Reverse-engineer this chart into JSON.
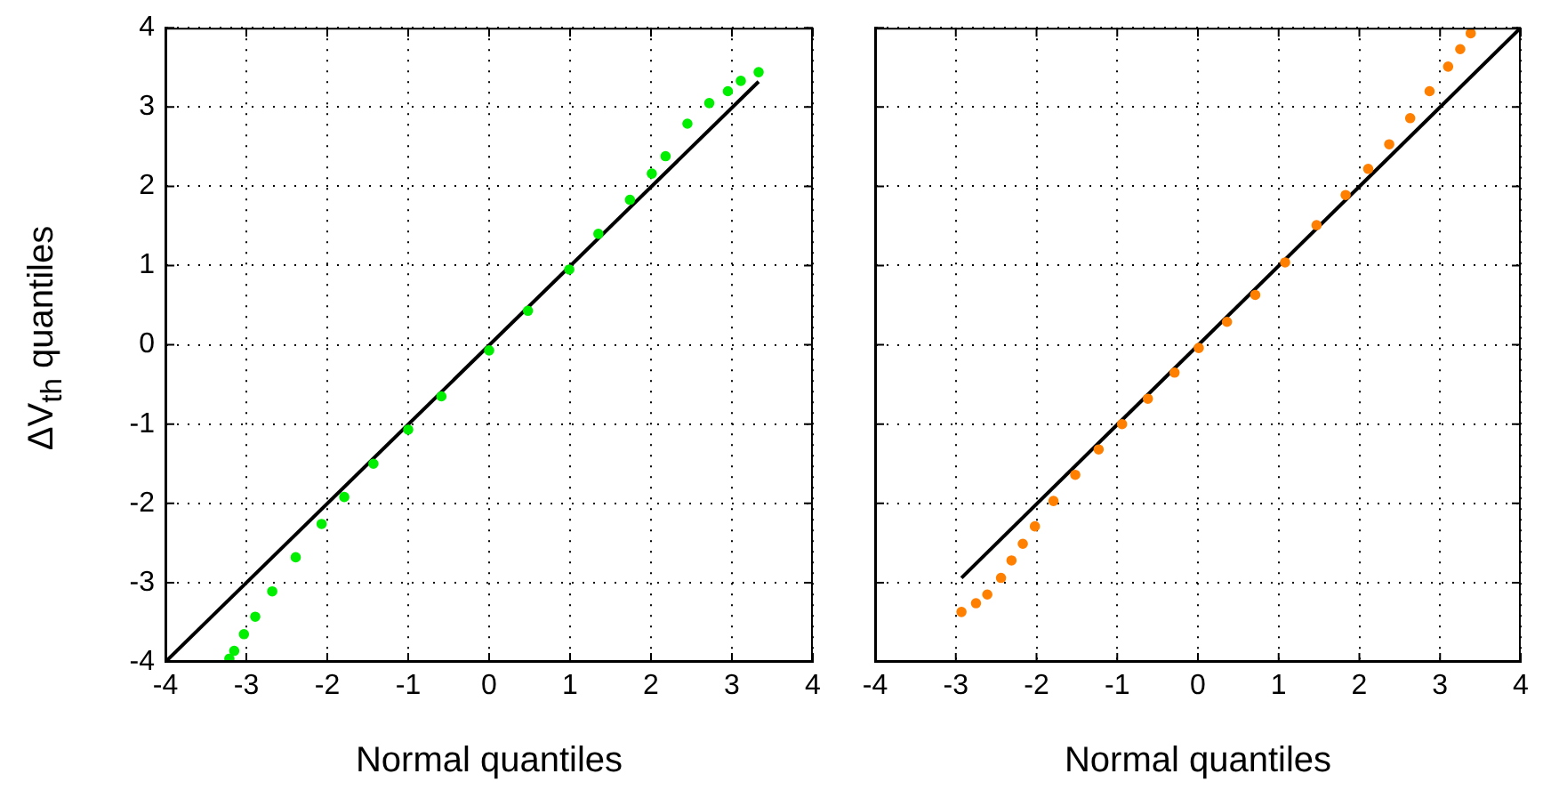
{
  "chart_data": [
    {
      "type": "scatter",
      "xlabel": "Normal quantiles",
      "ylabel": "ΔV$_{th}$ quantiles",
      "xlim": [
        -4,
        4
      ],
      "ylim": [
        -4,
        4
      ],
      "xticks": [
        -4,
        -3,
        -2,
        -1,
        0,
        1,
        2,
        3,
        4
      ],
      "yticks": [
        -4,
        -3,
        -2,
        -1,
        0,
        1,
        2,
        3,
        4
      ],
      "grid": true,
      "marker": "circle",
      "series": [
        {
          "color": "#00ee00",
          "x": [
            -3.21,
            -3.15,
            -3.03,
            -2.89,
            -2.68,
            -2.39,
            -2.07,
            -1.79,
            -1.43,
            -1.0,
            -0.59,
            0,
            0.48,
            0.99,
            1.35,
            1.74,
            2.01,
            2.18,
            2.45,
            2.72,
            2.95,
            3.11,
            3.33
          ],
          "values": [
            -3.96,
            -3.86,
            -3.65,
            -3.43,
            -3.11,
            -2.68,
            -2.26,
            -1.92,
            -1.5,
            -1.07,
            -0.65,
            -0.07,
            0.43,
            0.95,
            1.4,
            1.83,
            2.16,
            2.38,
            2.79,
            3.05,
            3.2,
            3.33,
            3.44
          ]
        },
        {
          "type": "line",
          "color": "#000000",
          "marker": "none",
          "x": [
            -4,
            3.33
          ],
          "values": [
            -4,
            3.32
          ]
        }
      ]
    },
    {
      "type": "scatter",
      "xlabel": "Normal quantiles",
      "xlim": [
        -4,
        4
      ],
      "ylim": [
        -4,
        4
      ],
      "xticks": [
        -4,
        -3,
        -2,
        -1,
        0,
        1,
        2,
        3,
        4
      ],
      "yticks": [
        -4,
        -3,
        -2,
        -1,
        0,
        1,
        2,
        3,
        4
      ],
      "grid": true,
      "marker": "circle",
      "tick_labels": "x",
      "series": [
        {
          "color": "#ff8000",
          "x": [
            -2.93,
            -2.75,
            -2.61,
            -2.44,
            -2.31,
            -2.17,
            -2.02,
            -1.79,
            -1.52,
            -1.23,
            -0.94,
            -0.62,
            -0.29,
            0.01,
            0.36,
            0.71,
            1.08,
            1.47,
            1.83,
            2.11,
            2.37,
            2.63,
            2.87,
            3.1,
            3.25,
            3.38
          ],
          "values": [
            -3.37,
            -3.26,
            -3.15,
            -2.94,
            -2.72,
            -2.51,
            -2.29,
            -1.97,
            -1.64,
            -1.32,
            -1.0,
            -0.68,
            -0.35,
            -0.04,
            0.29,
            0.63,
            1.04,
            1.51,
            1.89,
            2.22,
            2.53,
            2.86,
            3.2,
            3.51,
            3.73,
            3.93
          ]
        },
        {
          "type": "line",
          "color": "#000000",
          "marker": "none",
          "x": [
            -2.93,
            4
          ],
          "values": [
            -2.94,
            4
          ]
        }
      ]
    }
  ]
}
